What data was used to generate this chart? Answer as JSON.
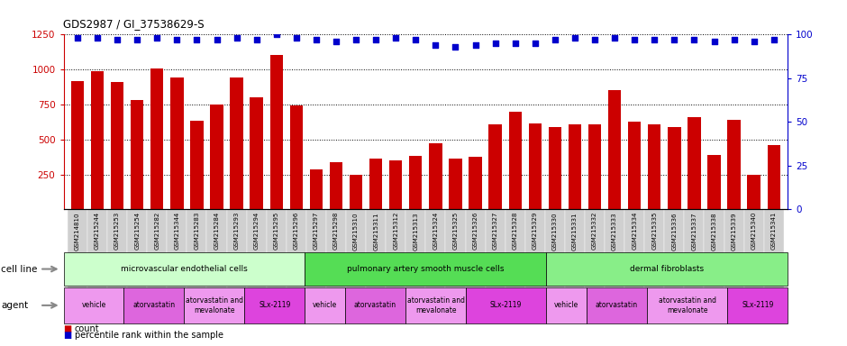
{
  "title": "GDS2987 / GI_37538629-S",
  "samples": [
    "GSM214810",
    "GSM215244",
    "GSM215253",
    "GSM215254",
    "GSM215282",
    "GSM215344",
    "GSM215283",
    "GSM215284",
    "GSM215293",
    "GSM215294",
    "GSM215295",
    "GSM215296",
    "GSM215297",
    "GSM215298",
    "GSM215310",
    "GSM215311",
    "GSM215312",
    "GSM215313",
    "GSM215324",
    "GSM215325",
    "GSM215326",
    "GSM215327",
    "GSM215328",
    "GSM215329",
    "GSM215330",
    "GSM215331",
    "GSM215332",
    "GSM215333",
    "GSM215334",
    "GSM215335",
    "GSM215336",
    "GSM215337",
    "GSM215338",
    "GSM215339",
    "GSM215340",
    "GSM215341"
  ],
  "counts": [
    920,
    990,
    910,
    780,
    1005,
    940,
    635,
    750,
    945,
    800,
    1105,
    745,
    285,
    340,
    250,
    365,
    350,
    385,
    475,
    360,
    375,
    610,
    700,
    615,
    590,
    605,
    605,
    855,
    625,
    605,
    590,
    660,
    390,
    640,
    250,
    460
  ],
  "percentile_ranks": [
    98,
    98,
    97,
    97,
    98,
    97,
    97,
    97,
    98,
    97,
    100,
    98,
    97,
    96,
    97,
    97,
    98,
    97,
    94,
    93,
    94,
    95,
    95,
    95,
    97,
    98,
    97,
    98,
    97,
    97,
    97,
    97,
    96,
    97,
    96,
    97
  ],
  "bar_color": "#cc0000",
  "dot_color": "#0000cc",
  "ylim_left": [
    0,
    1250
  ],
  "ylim_right": [
    0,
    100
  ],
  "yticks_left": [
    250,
    500,
    750,
    1000,
    1250
  ],
  "yticks_right": [
    0,
    25,
    50,
    75,
    100
  ],
  "cell_line_data": [
    {
      "label": "microvascular endothelial cells",
      "start": 0,
      "end": 12,
      "color": "#ccffcc"
    },
    {
      "label": "pulmonary artery smooth muscle cells",
      "start": 12,
      "end": 24,
      "color": "#55dd55"
    },
    {
      "label": "dermal fibroblasts",
      "start": 24,
      "end": 36,
      "color": "#88ee88"
    }
  ],
  "agent_data": [
    {
      "label": "vehicle",
      "start": 0,
      "end": 3,
      "color": "#ee99ee"
    },
    {
      "label": "atorvastatin",
      "start": 3,
      "end": 6,
      "color": "#dd66dd"
    },
    {
      "label": "atorvastatin and\nmevalonate",
      "start": 6,
      "end": 9,
      "color": "#ee99ee"
    },
    {
      "label": "SLx-2119",
      "start": 9,
      "end": 12,
      "color": "#dd44dd"
    },
    {
      "label": "vehicle",
      "start": 12,
      "end": 14,
      "color": "#ee99ee"
    },
    {
      "label": "atorvastatin",
      "start": 14,
      "end": 17,
      "color": "#dd66dd"
    },
    {
      "label": "atorvastatin and\nmevalonate",
      "start": 17,
      "end": 20,
      "color": "#ee99ee"
    },
    {
      "label": "SLx-2119",
      "start": 20,
      "end": 24,
      "color": "#dd44dd"
    },
    {
      "label": "vehicle",
      "start": 24,
      "end": 26,
      "color": "#ee99ee"
    },
    {
      "label": "atorvastatin",
      "start": 26,
      "end": 29,
      "color": "#dd66dd"
    },
    {
      "label": "atorvastatin and\nmevalonate",
      "start": 29,
      "end": 33,
      "color": "#ee99ee"
    },
    {
      "label": "SLx-2119",
      "start": 33,
      "end": 36,
      "color": "#dd44dd"
    }
  ],
  "bg_color": "#ffffff",
  "tick_color_left": "#cc0000",
  "tick_color_right": "#0000cc",
  "grid_color": "#000000",
  "xtick_bg": "#d0d0d0",
  "label_arrow_color": "#888888"
}
